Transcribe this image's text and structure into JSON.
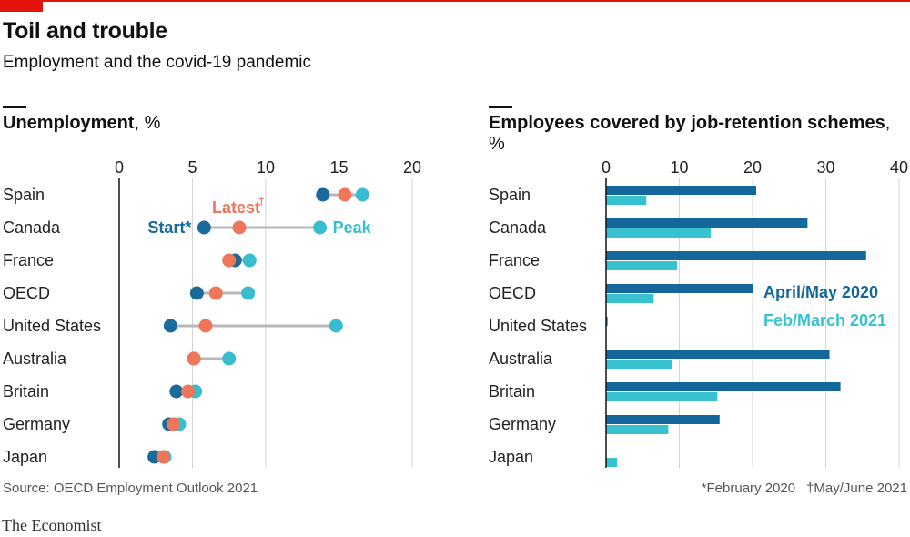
{
  "header": {
    "title": "Toil and trouble",
    "subtitle": "Employment and the covid-19 pandemic"
  },
  "colors": {
    "start": "#1a6a9a",
    "latest": "#f0765a",
    "peak": "#38bcd0",
    "april_may": "#14679a",
    "feb_march": "#38c2d0",
    "accent": "#e3120b"
  },
  "chart_data": [
    {
      "type": "scatter",
      "title": "Unemployment",
      "unit": ", %",
      "categories": [
        "Spain",
        "Canada",
        "France",
        "OECD",
        "United States",
        "Australia",
        "Britain",
        "Germany",
        "Japan"
      ],
      "xlim": [
        0,
        20
      ],
      "xticks": [
        "0",
        "5",
        "10",
        "15",
        "20"
      ],
      "xtick_values": [
        0,
        5,
        10,
        15,
        20
      ],
      "series": [
        {
          "name": "Start*",
          "key": "start",
          "values": [
            13.9,
            5.8,
            7.9,
            5.3,
            3.5,
            5.1,
            3.9,
            3.4,
            2.4
          ]
        },
        {
          "name": "Latest†",
          "key": "latest",
          "values": [
            15.4,
            8.2,
            7.5,
            6.6,
            5.9,
            5.1,
            4.7,
            3.7,
            3.0
          ]
        },
        {
          "name": "Peak",
          "key": "peak",
          "values": [
            16.6,
            13.7,
            8.9,
            8.8,
            14.8,
            7.5,
            5.2,
            4.1,
            3.1
          ]
        }
      ],
      "annotations": {
        "start": "Start*",
        "latest": "Latest",
        "latest_dagger": "†",
        "peak": "Peak"
      }
    },
    {
      "type": "bar",
      "title": "Employees covered by job-retention schemes",
      "unit": ", %",
      "categories": [
        "Spain",
        "Canada",
        "France",
        "OECD",
        "United States",
        "Australia",
        "Britain",
        "Germany",
        "Japan"
      ],
      "xlim": [
        0,
        40
      ],
      "xticks": [
        "0",
        "10",
        "20",
        "30",
        "40"
      ],
      "xtick_values": [
        0,
        10,
        20,
        30,
        40
      ],
      "series": [
        {
          "name": "April/May 2020",
          "key": "april_may",
          "values": [
            20.5,
            27.5,
            35.5,
            20,
            0.2,
            30.5,
            32,
            15.5,
            0
          ]
        },
        {
          "name": "Feb/March 2021",
          "key": "feb_march",
          "values": [
            5.5,
            14.3,
            9.7,
            6.5,
            0,
            9,
            15.2,
            8.5,
            1.5
          ]
        }
      ]
    }
  ],
  "footer": {
    "source": "Source: OECD Employment Outlook 2021",
    "note_start": "*February 2020",
    "note_latest": "†May/June 2021",
    "brand": "The Economist"
  }
}
